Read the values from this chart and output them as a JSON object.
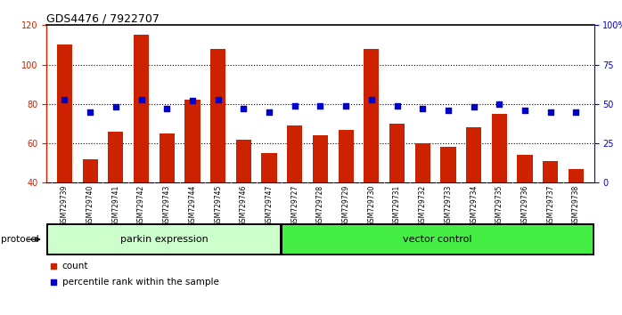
{
  "title": "GDS4476 / 7922707",
  "samples": [
    "GSM729739",
    "GSM729740",
    "GSM729741",
    "GSM729742",
    "GSM729743",
    "GSM729744",
    "GSM729745",
    "GSM729746",
    "GSM729747",
    "GSM729727",
    "GSM729728",
    "GSM729729",
    "GSM729730",
    "GSM729731",
    "GSM729732",
    "GSM729733",
    "GSM729734",
    "GSM729735",
    "GSM729736",
    "GSM729737",
    "GSM729738"
  ],
  "counts": [
    110,
    52,
    66,
    115,
    65,
    82,
    108,
    62,
    55,
    69,
    64,
    67,
    108,
    70,
    60,
    58,
    68,
    75,
    54,
    51,
    47
  ],
  "percentiles": [
    53,
    45,
    48,
    53,
    47,
    52,
    53,
    47,
    45,
    49,
    49,
    49,
    53,
    49,
    47,
    46,
    48,
    50,
    46,
    45,
    45
  ],
  "parkin_count": 9,
  "vector_count": 12,
  "parkin_label": "parkin expression",
  "vector_label": "vector control",
  "protocol_label": "protocol",
  "ylim_left": [
    40,
    120
  ],
  "ylim_right": [
    0,
    100
  ],
  "yticks_left": [
    40,
    60,
    80,
    100,
    120
  ],
  "yticks_right": [
    0,
    25,
    50,
    75,
    100
  ],
  "bar_color": "#cc2200",
  "dot_color": "#0000cc",
  "plot_bg": "#ffffff",
  "tick_bg": "#d0d0d0",
  "parkin_bg": "#ccffcc",
  "vector_bg": "#44ee44",
  "legend_count_label": "count",
  "legend_pct_label": "percentile rank within the sample"
}
